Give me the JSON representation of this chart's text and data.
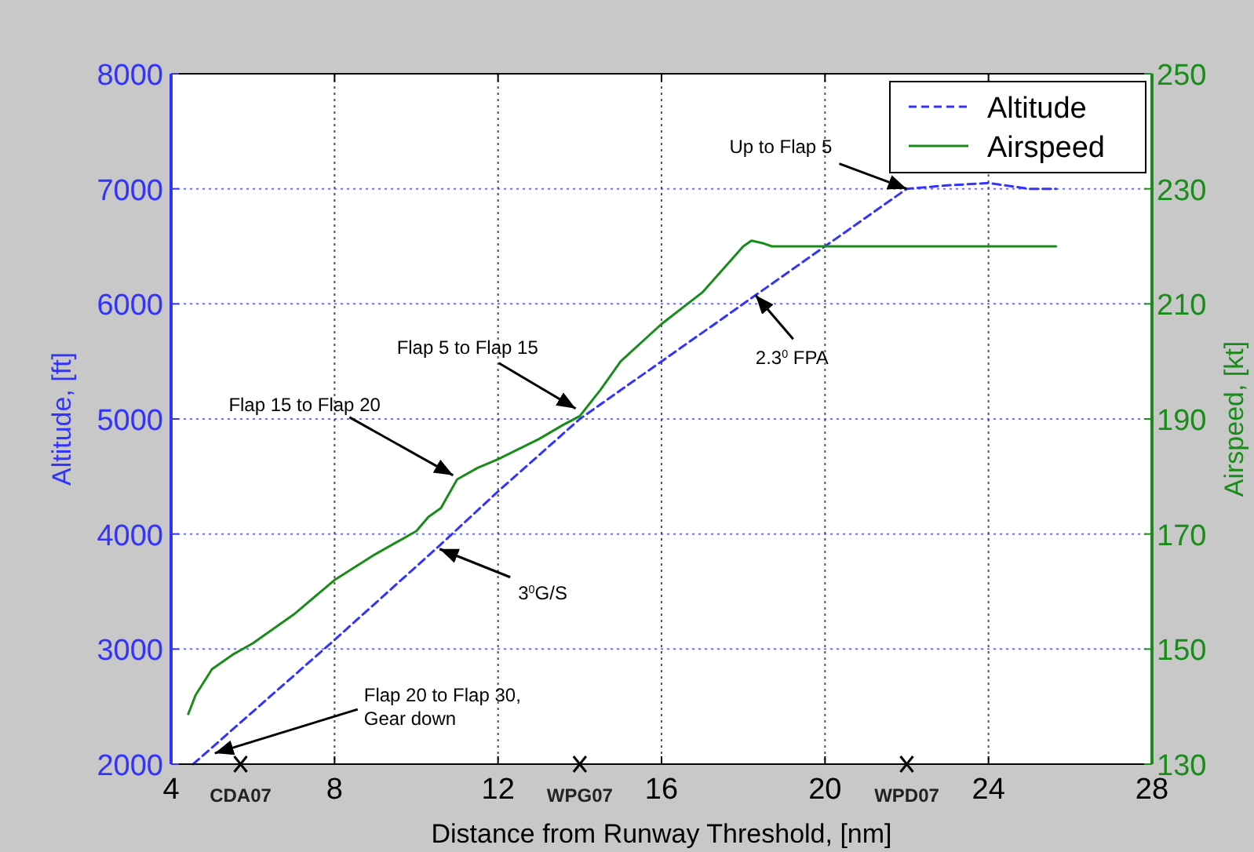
{
  "chart_data": {
    "type": "line",
    "xlabel": "Distance from Runway Threshold, [nm]",
    "ylabel": "Altitude, [ft]",
    "y2label": "Airspeed, [kt]",
    "xlim": [
      4,
      28
    ],
    "xticks": [
      4,
      8,
      12,
      16,
      20,
      24,
      28
    ],
    "ylim": [
      2000,
      8000
    ],
    "yticks": [
      2000,
      3000,
      4000,
      5000,
      6000,
      7000,
      8000
    ],
    "y2lim": [
      130,
      250
    ],
    "y2ticks": [
      130,
      150,
      170,
      190,
      210,
      230,
      250
    ],
    "grid": true,
    "legend": "top right",
    "series": [
      {
        "name": "Altitude",
        "color": "#3333ff",
        "line_style": "dashed",
        "x": [
          4.54,
          8,
          10.57,
          12,
          14,
          16,
          18,
          20,
          22,
          23,
          24,
          25,
          25.65
        ],
        "values": [
          2000,
          3080,
          3900,
          4370,
          5000,
          5500,
          6000,
          6500,
          7000,
          7030,
          7050,
          7000,
          7000
        ]
      },
      {
        "name": "Airspeed",
        "color": "#1a8c1a",
        "line_style": "solid",
        "axis": "y2",
        "x": [
          4.42,
          4.6,
          5.0,
          5.5,
          6,
          7,
          8,
          9,
          10,
          10.3,
          10.6,
          11,
          11.5,
          12,
          13,
          13.6,
          14,
          14.5,
          15,
          16,
          17,
          18,
          18.2,
          18.5,
          18.7,
          25.65
        ],
        "values": [
          138.7,
          142,
          146.5,
          149,
          151,
          156,
          162,
          166.5,
          170.5,
          173,
          174.5,
          179.5,
          181.5,
          183,
          186.5,
          189,
          190.5,
          195,
          200,
          206.5,
          212,
          220,
          221,
          220.5,
          220,
          220
        ]
      }
    ],
    "annotations": [
      {
        "text": "Flap 20 to Flap 30,\nGear down",
        "x": 5.07,
        "y": 2095
      },
      {
        "text": "3$^{0}$G/S",
        "x": 10.57,
        "y": 3870
      },
      {
        "text": "Flap 15 to Flap 20",
        "x": 10.9,
        "y": 4510
      },
      {
        "text": "Flap 5 to Flap 15",
        "x": 13.9,
        "y": 5090
      },
      {
        "text": "2.3$^{0}$ FPA",
        "x": 18.3,
        "y": 6075
      },
      {
        "text": "Up to Flap 5",
        "x": 22,
        "y": 7000
      },
      {
        "text": "CDA07",
        "x": 5.7,
        "y": 2000
      },
      {
        "text": "WPG07",
        "x": 14,
        "y": 2000
      },
      {
        "text": "WPD07",
        "x": 22,
        "y": 2000
      }
    ]
  }
}
